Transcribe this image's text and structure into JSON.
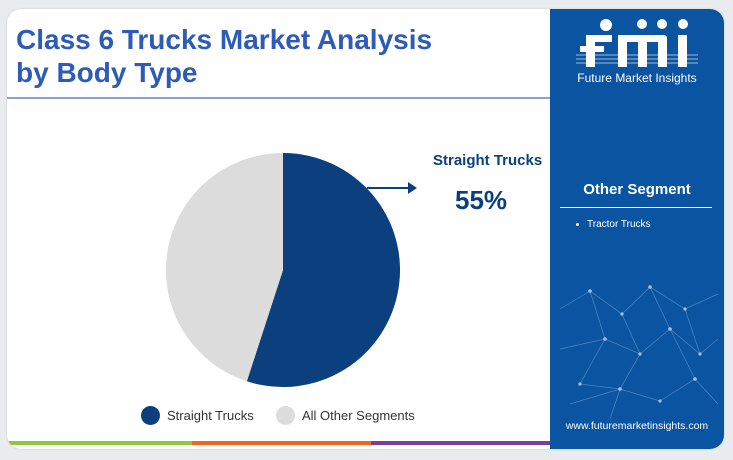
{
  "title": {
    "line1": "Class 6 Trucks Market Analysis",
    "line2": "by Body Type"
  },
  "chart_data": {
    "type": "pie",
    "categories": [
      "Straight Trucks",
      "All Other Segments"
    ],
    "values": [
      55,
      45
    ],
    "colors": [
      "#0c3f7e",
      "#dcdcdc"
    ],
    "start_angle_deg": 0,
    "direction": "clockwise",
    "callout": {
      "label": "Straight Trucks",
      "value": "55%"
    },
    "legend": {
      "placement": "bottom",
      "items": [
        {
          "label": "Straight Trucks",
          "color": "#0c3f7e"
        },
        {
          "label": "All Other Segments",
          "color": "#dcdcdc"
        }
      ]
    }
  },
  "sidebar": {
    "logo_text": "Future Market Insights",
    "logo_icon": "fmi-logo",
    "heading": "Other Segment",
    "items": [
      "Tractor Trucks"
    ],
    "url": "www.futuremarketinsights.com",
    "background_color": "#0b54a1"
  },
  "accent_colors": [
    "#8dc63f",
    "#f26522",
    "#7b3f99"
  ]
}
